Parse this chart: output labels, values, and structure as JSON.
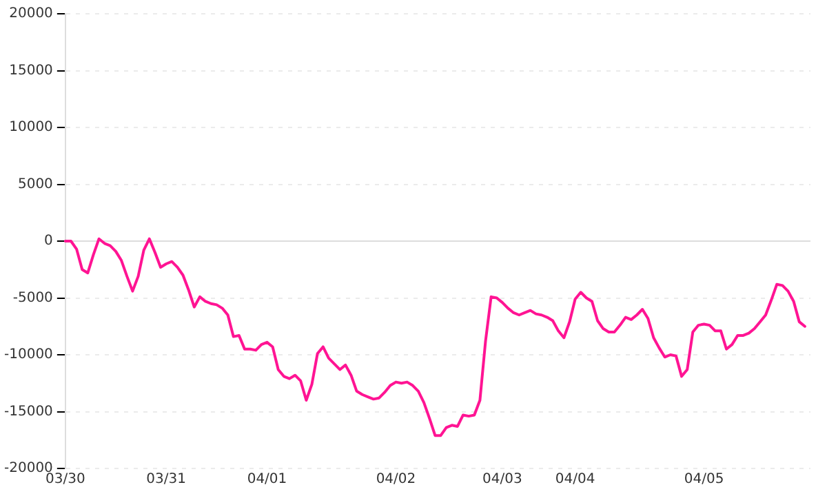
{
  "chart_data": {
    "type": "line",
    "categories": [
      "03/30",
      null,
      null,
      null,
      null,
      null,
      null,
      null,
      null,
      null,
      null,
      null,
      null,
      null,
      null,
      null,
      null,
      null,
      "03/31",
      null,
      null,
      null,
      null,
      null,
      null,
      null,
      null,
      null,
      null,
      null,
      null,
      null,
      null,
      null,
      null,
      null,
      "04/01",
      null,
      null,
      null,
      null,
      null,
      null,
      null,
      null,
      null,
      null,
      null,
      null,
      null,
      null,
      null,
      null,
      null,
      null,
      null,
      null,
      null,
      null,
      "04/02",
      null,
      null,
      null,
      null,
      null,
      null,
      null,
      null,
      null,
      null,
      null,
      null,
      null,
      null,
      null,
      null,
      null,
      null,
      "04/03",
      null,
      null,
      null,
      null,
      null,
      null,
      null,
      null,
      null,
      null,
      null,
      null,
      "04/04",
      null,
      null,
      null,
      null,
      null,
      null,
      null,
      null,
      null,
      null,
      null,
      null,
      null,
      null,
      null,
      null,
      null,
      null,
      null,
      null,
      null,
      null,
      "04/05",
      null,
      null,
      null,
      null,
      null,
      null,
      null,
      null,
      null,
      null,
      null,
      null,
      null,
      null,
      null,
      null,
      null,
      null,
      null
    ],
    "series": [
      {
        "color": "#ff1493",
        "values": [
          0,
          0,
          -700,
          -2500,
          -2800,
          -1200,
          200,
          -200,
          -400,
          -900,
          -1700,
          -3100,
          -4400,
          -3100,
          -800,
          200,
          -1000,
          -2300,
          -2000,
          -1800,
          -2300,
          -3000,
          -4300,
          -5800,
          -4900,
          -5300,
          -5500,
          -5600,
          -5900,
          -6500,
          -8400,
          -8300,
          -9500,
          -9500,
          -9600,
          -9100,
          -8900,
          -9300,
          -11300,
          -11900,
          -12100,
          -11800,
          -12300,
          -14000,
          -12600,
          -9900,
          -9300,
          -10300,
          -10800,
          -11300,
          -10900,
          -11800,
          -13200,
          -13500,
          -13700,
          -13900,
          -13800,
          -13300,
          -12700,
          -12400,
          -12500,
          -12400,
          -12700,
          -13200,
          -14200,
          -15600,
          -17100,
          -17100,
          -16400,
          -16200,
          -16300,
          -15300,
          -15400,
          -15300,
          -14000,
          -8800,
          -4900,
          -5000,
          -5400,
          -5900,
          -6300,
          -6500,
          -6300,
          -6100,
          -6400,
          -6500,
          -6700,
          -7000,
          -7900,
          -8500,
          -7100,
          -5100,
          -4500,
          -5000,
          -5300,
          -7000,
          -7700,
          -8000,
          -8000,
          -7400,
          -6700,
          -6900,
          -6500,
          -6000,
          -6800,
          -8500,
          -9400,
          -10200,
          -10000,
          -10100,
          -11900,
          -11300,
          -8000,
          -7400,
          -7300,
          -7400,
          -7900,
          -7900,
          -9500,
          -9100,
          -8300,
          -8300,
          -8100,
          -7700,
          -7100,
          -6500,
          -5200,
          -3800,
          -3900,
          -4400,
          -5300,
          -7100,
          -7500,
          null
        ]
      }
    ],
    "ylim": [
      -20000,
      20000
    ],
    "yticks": [
      -20000,
      -15000,
      -10000,
      -5000,
      0,
      5000,
      10000,
      15000,
      20000
    ],
    "grid": "y",
    "legend": false,
    "marker": "none",
    "line_style": "solid"
  }
}
